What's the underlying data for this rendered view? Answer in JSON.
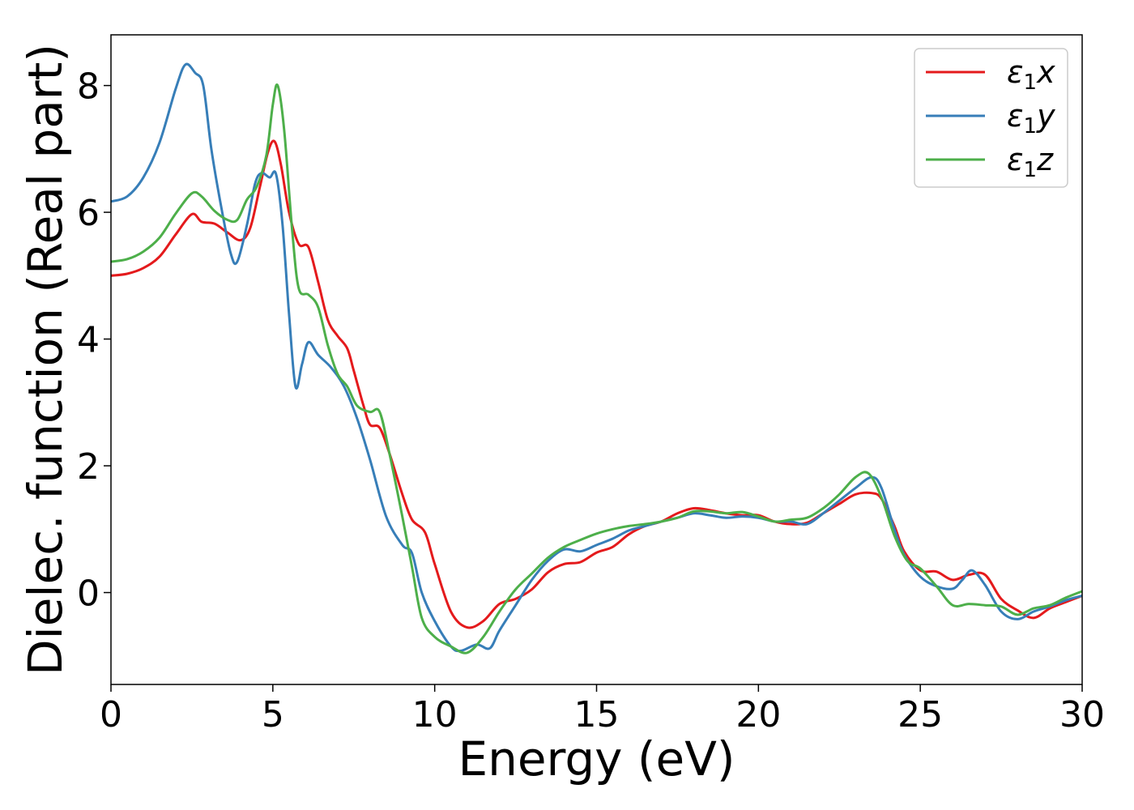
{
  "chart_data": {
    "type": "line",
    "title": "",
    "xlabel": "Energy (eV)",
    "ylabel": "Dielec. function (Real part)",
    "xlim": [
      0,
      30
    ],
    "ylim": [
      -1.45,
      8.8
    ],
    "xticks": [
      0,
      5,
      10,
      15,
      20,
      25,
      30
    ],
    "yticks": [
      0,
      2,
      4,
      6,
      8
    ],
    "grid": false,
    "legend_position": "top-right",
    "series": [
      {
        "name": "ε₁x",
        "legend_base": "ε",
        "legend_sub": "1",
        "legend_suffix": "x",
        "color": "#e41a1c",
        "points": [
          [
            0,
            5.0
          ],
          [
            0.5,
            5.03
          ],
          [
            1.0,
            5.12
          ],
          [
            1.5,
            5.3
          ],
          [
            2.0,
            5.65
          ],
          [
            2.5,
            5.97
          ],
          [
            2.8,
            5.85
          ],
          [
            3.2,
            5.82
          ],
          [
            3.6,
            5.68
          ],
          [
            4.0,
            5.56
          ],
          [
            4.3,
            5.75
          ],
          [
            4.6,
            6.4
          ],
          [
            4.85,
            6.95
          ],
          [
            5.05,
            7.12
          ],
          [
            5.25,
            6.75
          ],
          [
            5.5,
            6.0
          ],
          [
            5.8,
            5.5
          ],
          [
            6.1,
            5.45
          ],
          [
            6.4,
            4.9
          ],
          [
            6.7,
            4.3
          ],
          [
            7.0,
            4.05
          ],
          [
            7.3,
            3.85
          ],
          [
            7.5,
            3.5
          ],
          [
            7.8,
            2.95
          ],
          [
            8.0,
            2.65
          ],
          [
            8.3,
            2.6
          ],
          [
            8.6,
            2.2
          ],
          [
            9.0,
            1.55
          ],
          [
            9.3,
            1.15
          ],
          [
            9.7,
            0.95
          ],
          [
            10.0,
            0.45
          ],
          [
            10.5,
            -0.3
          ],
          [
            11.0,
            -0.55
          ],
          [
            11.5,
            -0.45
          ],
          [
            12.0,
            -0.18
          ],
          [
            12.5,
            -0.1
          ],
          [
            13.0,
            0.05
          ],
          [
            13.5,
            0.32
          ],
          [
            14.0,
            0.45
          ],
          [
            14.5,
            0.48
          ],
          [
            15.0,
            0.63
          ],
          [
            15.5,
            0.72
          ],
          [
            16.0,
            0.92
          ],
          [
            16.5,
            1.05
          ],
          [
            17.0,
            1.12
          ],
          [
            17.5,
            1.25
          ],
          [
            18.0,
            1.33
          ],
          [
            18.5,
            1.3
          ],
          [
            19.0,
            1.25
          ],
          [
            19.5,
            1.22
          ],
          [
            20.0,
            1.22
          ],
          [
            20.5,
            1.12
          ],
          [
            21.0,
            1.08
          ],
          [
            21.5,
            1.1
          ],
          [
            22.0,
            1.25
          ],
          [
            22.5,
            1.4
          ],
          [
            23.0,
            1.55
          ],
          [
            23.5,
            1.57
          ],
          [
            23.8,
            1.48
          ],
          [
            24.2,
            1.05
          ],
          [
            24.5,
            0.65
          ],
          [
            25.0,
            0.35
          ],
          [
            25.5,
            0.33
          ],
          [
            26.0,
            0.2
          ],
          [
            26.5,
            0.28
          ],
          [
            27.0,
            0.28
          ],
          [
            27.5,
            -0.1
          ],
          [
            28.0,
            -0.28
          ],
          [
            28.5,
            -0.4
          ],
          [
            29.0,
            -0.25
          ],
          [
            29.5,
            -0.15
          ],
          [
            30.0,
            -0.05
          ]
        ]
      },
      {
        "name": "ε₁y",
        "legend_base": "ε",
        "legend_sub": "1",
        "legend_suffix": "y",
        "color": "#377eb8",
        "points": [
          [
            0,
            6.17
          ],
          [
            0.5,
            6.25
          ],
          [
            1.0,
            6.55
          ],
          [
            1.5,
            7.1
          ],
          [
            2.0,
            7.95
          ],
          [
            2.3,
            8.33
          ],
          [
            2.6,
            8.2
          ],
          [
            2.85,
            8.0
          ],
          [
            3.1,
            7.0
          ],
          [
            3.4,
            6.1
          ],
          [
            3.7,
            5.35
          ],
          [
            3.9,
            5.22
          ],
          [
            4.2,
            5.8
          ],
          [
            4.45,
            6.45
          ],
          [
            4.65,
            6.62
          ],
          [
            4.9,
            6.55
          ],
          [
            5.1,
            6.6
          ],
          [
            5.3,
            5.8
          ],
          [
            5.5,
            4.4
          ],
          [
            5.7,
            3.25
          ],
          [
            5.9,
            3.6
          ],
          [
            6.1,
            3.95
          ],
          [
            6.4,
            3.75
          ],
          [
            6.8,
            3.55
          ],
          [
            7.2,
            3.25
          ],
          [
            7.6,
            2.75
          ],
          [
            8.0,
            2.1
          ],
          [
            8.5,
            1.2
          ],
          [
            9.0,
            0.75
          ],
          [
            9.3,
            0.62
          ],
          [
            9.6,
            0.0
          ],
          [
            10.0,
            -0.45
          ],
          [
            10.5,
            -0.85
          ],
          [
            10.8,
            -0.92
          ],
          [
            11.3,
            -0.82
          ],
          [
            11.7,
            -0.88
          ],
          [
            12.0,
            -0.6
          ],
          [
            12.5,
            -0.2
          ],
          [
            13.0,
            0.2
          ],
          [
            13.5,
            0.5
          ],
          [
            14.0,
            0.68
          ],
          [
            14.5,
            0.65
          ],
          [
            15.0,
            0.75
          ],
          [
            15.5,
            0.85
          ],
          [
            16.0,
            0.98
          ],
          [
            16.5,
            1.05
          ],
          [
            17.0,
            1.12
          ],
          [
            17.5,
            1.18
          ],
          [
            18.0,
            1.25
          ],
          [
            18.5,
            1.22
          ],
          [
            19.0,
            1.18
          ],
          [
            19.5,
            1.2
          ],
          [
            20.0,
            1.18
          ],
          [
            20.5,
            1.12
          ],
          [
            21.0,
            1.12
          ],
          [
            21.5,
            1.08
          ],
          [
            22.0,
            1.25
          ],
          [
            22.5,
            1.45
          ],
          [
            23.0,
            1.65
          ],
          [
            23.5,
            1.82
          ],
          [
            23.8,
            1.65
          ],
          [
            24.2,
            1.0
          ],
          [
            24.5,
            0.6
          ],
          [
            25.0,
            0.25
          ],
          [
            25.5,
            0.1
          ],
          [
            26.0,
            0.06
          ],
          [
            26.3,
            0.2
          ],
          [
            26.6,
            0.35
          ],
          [
            27.0,
            0.12
          ],
          [
            27.5,
            -0.3
          ],
          [
            28.0,
            -0.42
          ],
          [
            28.5,
            -0.3
          ],
          [
            29.0,
            -0.22
          ],
          [
            29.5,
            -0.12
          ],
          [
            30.0,
            -0.05
          ]
        ]
      },
      {
        "name": "ε₁z",
        "legend_base": "ε",
        "legend_sub": "1",
        "legend_suffix": "z",
        "color": "#4daf4a",
        "points": [
          [
            0,
            5.22
          ],
          [
            0.5,
            5.26
          ],
          [
            1.0,
            5.38
          ],
          [
            1.5,
            5.6
          ],
          [
            2.0,
            5.98
          ],
          [
            2.5,
            6.3
          ],
          [
            2.8,
            6.25
          ],
          [
            3.2,
            6.02
          ],
          [
            3.6,
            5.88
          ],
          [
            3.9,
            5.88
          ],
          [
            4.2,
            6.2
          ],
          [
            4.5,
            6.4
          ],
          [
            4.8,
            6.9
          ],
          [
            5.0,
            7.7
          ],
          [
            5.15,
            8.0
          ],
          [
            5.35,
            7.3
          ],
          [
            5.6,
            5.7
          ],
          [
            5.8,
            4.8
          ],
          [
            6.1,
            4.7
          ],
          [
            6.4,
            4.5
          ],
          [
            6.7,
            3.9
          ],
          [
            7.0,
            3.45
          ],
          [
            7.3,
            3.25
          ],
          [
            7.6,
            2.95
          ],
          [
            8.0,
            2.85
          ],
          [
            8.3,
            2.85
          ],
          [
            8.6,
            2.2
          ],
          [
            9.0,
            1.2
          ],
          [
            9.3,
            0.4
          ],
          [
            9.6,
            -0.4
          ],
          [
            10.0,
            -0.7
          ],
          [
            10.5,
            -0.85
          ],
          [
            11.0,
            -0.95
          ],
          [
            11.5,
            -0.7
          ],
          [
            12.0,
            -0.3
          ],
          [
            12.5,
            0.05
          ],
          [
            13.0,
            0.3
          ],
          [
            13.5,
            0.55
          ],
          [
            14.0,
            0.72
          ],
          [
            14.5,
            0.83
          ],
          [
            15.0,
            0.93
          ],
          [
            15.5,
            1.0
          ],
          [
            16.0,
            1.05
          ],
          [
            16.5,
            1.08
          ],
          [
            17.0,
            1.12
          ],
          [
            17.5,
            1.18
          ],
          [
            18.0,
            1.28
          ],
          [
            18.5,
            1.28
          ],
          [
            19.0,
            1.25
          ],
          [
            19.5,
            1.27
          ],
          [
            20.0,
            1.2
          ],
          [
            20.5,
            1.12
          ],
          [
            21.0,
            1.15
          ],
          [
            21.5,
            1.18
          ],
          [
            22.0,
            1.33
          ],
          [
            22.5,
            1.55
          ],
          [
            23.0,
            1.82
          ],
          [
            23.4,
            1.88
          ],
          [
            23.8,
            1.5
          ],
          [
            24.2,
            0.9
          ],
          [
            24.6,
            0.5
          ],
          [
            25.0,
            0.38
          ],
          [
            25.5,
            0.1
          ],
          [
            26.0,
            -0.2
          ],
          [
            26.5,
            -0.18
          ],
          [
            27.0,
            -0.2
          ],
          [
            27.5,
            -0.22
          ],
          [
            28.0,
            -0.35
          ],
          [
            28.5,
            -0.25
          ],
          [
            29.0,
            -0.2
          ],
          [
            29.5,
            -0.08
          ],
          [
            30.0,
            0.02
          ]
        ]
      }
    ]
  }
}
